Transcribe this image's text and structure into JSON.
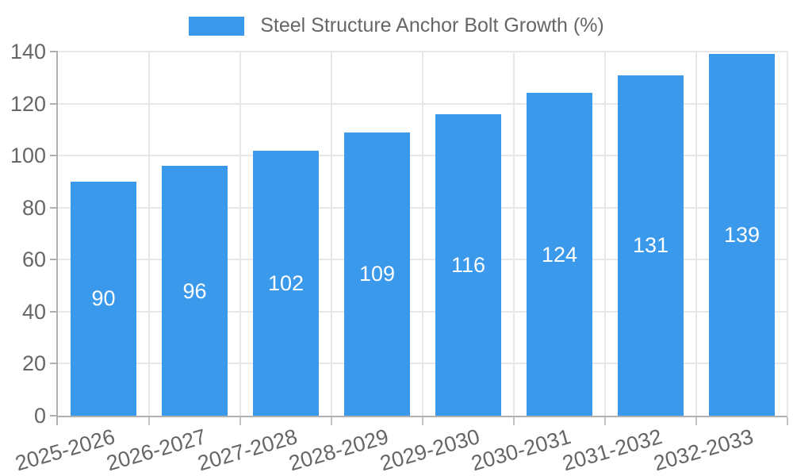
{
  "chart_data": {
    "type": "bar",
    "title": "Steel Structure Anchor Bolt Growth (%)",
    "legend": {
      "label": "Steel Structure Anchor Bolt Growth (%)",
      "position": "top-center"
    },
    "categories": [
      "2025-2026",
      "2026-2027",
      "2027-2028",
      "2028-2029",
      "2029-2030",
      "2030-2031",
      "2031-2032",
      "2032-2033"
    ],
    "series": [
      {
        "name": "Steel Structure Anchor Bolt Growth (%)",
        "values": [
          90,
          96,
          102,
          109,
          116,
          124,
          131,
          139
        ]
      }
    ],
    "value_labels": [
      90,
      96,
      102,
      109,
      116,
      124,
      131,
      139
    ],
    "value_labels_position": "center-of-bar",
    "xlabel": "",
    "ylabel": "",
    "ylim": [
      0,
      140
    ],
    "y_ticks": [
      0,
      20,
      40,
      60,
      80,
      100,
      120,
      140
    ],
    "x_tick_rotation_deg": -16,
    "grid": true,
    "colors": {
      "bar": "#3B99EC",
      "axis_text": "#666666",
      "grid_line": "#E7E7E7",
      "axis_line": "#B0B0B0",
      "tick_mark": "#C4C4C4",
      "value_label_text": "#FFFFFF",
      "background": "#FFFFFF"
    }
  }
}
